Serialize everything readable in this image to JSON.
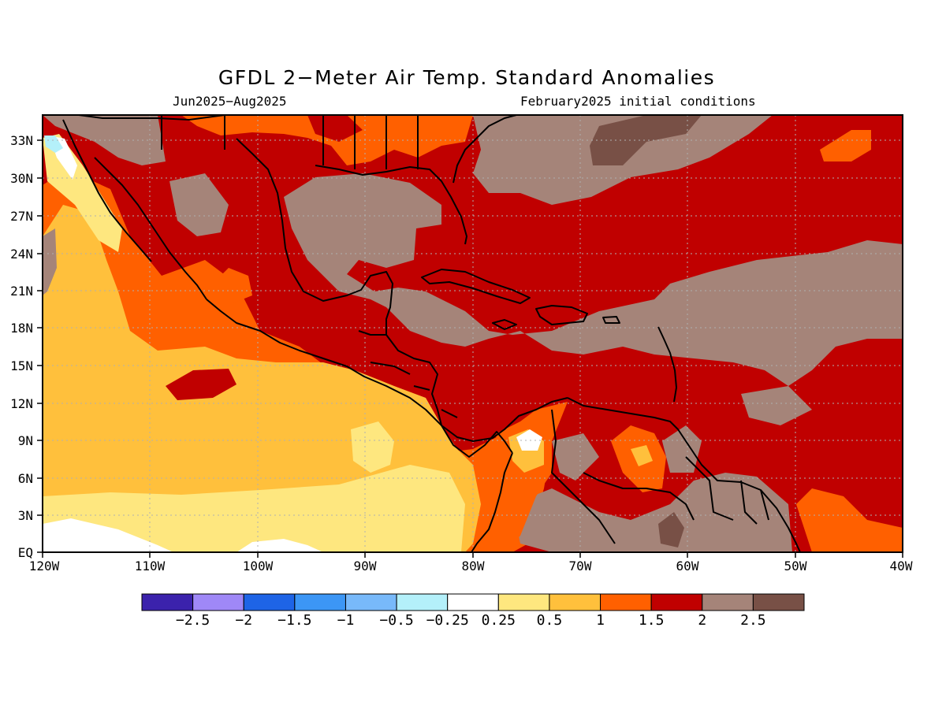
{
  "title": "GFDL 2−Meter Air Temp. Standard Anomalies",
  "subtitle_left": "Jun2025−Aug2025",
  "subtitle_right": "February2025 initial conditions",
  "lat_labels": [
    "33N",
    "30N",
    "27N",
    "24N",
    "21N",
    "18N",
    "15N",
    "12N",
    "9N",
    "6N",
    "3N",
    "EQ"
  ],
  "lon_labels": [
    "120W",
    "110W",
    "100W",
    "90W",
    "80W",
    "70W",
    "60W",
    "50W",
    "40W"
  ],
  "colorbar": {
    "colors": [
      "#3b22ac",
      "#9f88f7",
      "#1e64e6",
      "#3c96f5",
      "#78b9fa",
      "#b4f0fa",
      "#ffffff",
      "#fee77f",
      "#ffc03c",
      "#ff6000",
      "#c00000",
      "#a58479",
      "#785046"
    ],
    "tick_labels": [
      "−2.5",
      "−2",
      "−1.5",
      "−1",
      "−0.5",
      "−0.25",
      "0.25",
      "0.5",
      "1",
      "1.5",
      "2",
      "2.5"
    ]
  }
}
